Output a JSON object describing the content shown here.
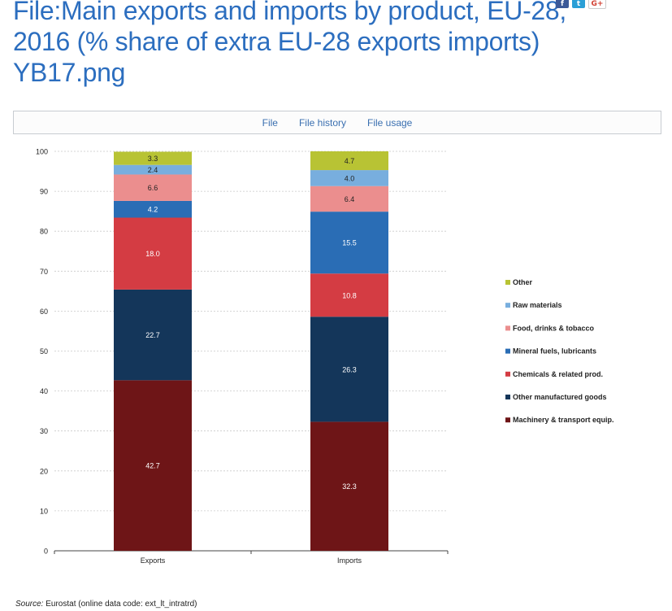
{
  "page": {
    "title": "File:Main exports and imports by product, EU-28, 2016 (% share of extra EU-28 exports imports) YB17.png"
  },
  "social": {
    "facebook": "f",
    "twitter": "t",
    "googleplus": "G+"
  },
  "tabs": [
    {
      "label": "File"
    },
    {
      "label": "File history"
    },
    {
      "label": "File usage"
    }
  ],
  "source": {
    "label": "Source:",
    "text": "Eurostat (online data code: ext_lt_intratrd)"
  },
  "chart_data": {
    "type": "bar",
    "stacked": true,
    "categories": [
      "Exports",
      "Imports"
    ],
    "ylim": [
      0,
      100
    ],
    "yticks": [
      0,
      10,
      20,
      30,
      40,
      50,
      60,
      70,
      80,
      90,
      100
    ],
    "grid": true,
    "legend_placement": "right",
    "series": [
      {
        "name": "Machinery & transport equip.",
        "values": [
          42.7,
          32.3
        ],
        "color": "#6e1517"
      },
      {
        "name": "Other manufactured goods",
        "values": [
          22.7,
          26.3
        ],
        "color": "#14365a"
      },
      {
        "name": "Chemicals & related prod.",
        "values": [
          18.0,
          10.8
        ],
        "color": "#d43c43"
      },
      {
        "name": "Mineral fuels, lubricants",
        "values": [
          4.2,
          15.5
        ],
        "color": "#2a6db5"
      },
      {
        "name": "Food, drinks & tobacco",
        "values": [
          6.6,
          6.4
        ],
        "color": "#eb8e8e"
      },
      {
        "name": "Raw materials",
        "values": [
          2.4,
          4.0
        ],
        "color": "#78aede"
      },
      {
        "name": "Other",
        "values": [
          3.3,
          4.7
        ],
        "color": "#b8c334"
      }
    ],
    "light_label_series": [
      "Machinery & transport equip.",
      "Other manufactured goods",
      "Chemicals & related prod.",
      "Mineral fuels, lubricants"
    ]
  }
}
